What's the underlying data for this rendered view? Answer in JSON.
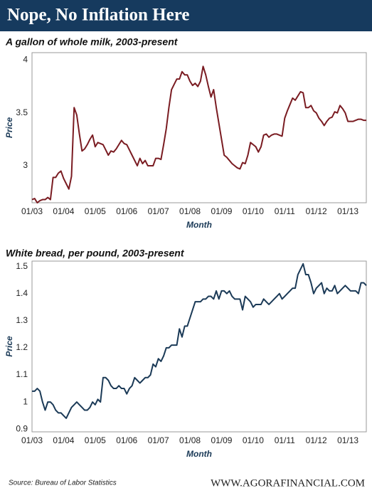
{
  "header": {
    "title": "Nope, No Inflation Here"
  },
  "footer": {
    "source": "Source: Bureau of Labor Statistics",
    "website": "WWW.AGORAFINANCIAL.COM"
  },
  "chart_data": [
    {
      "type": "line",
      "title": "A gallon of whole milk, 2003-present",
      "x_label": "Month",
      "y_label": "Price",
      "color": "#7a1c22",
      "categories": [
        "01/03",
        null,
        null,
        null,
        null,
        null,
        null,
        null,
        null,
        null,
        null,
        null,
        "01/04",
        null,
        null,
        null,
        null,
        null,
        null,
        null,
        null,
        null,
        null,
        null,
        "01/05",
        null,
        null,
        null,
        null,
        null,
        null,
        null,
        null,
        null,
        null,
        null,
        "01/06",
        null,
        null,
        null,
        null,
        null,
        null,
        null,
        null,
        null,
        null,
        null,
        "01/07",
        null,
        null,
        null,
        null,
        null,
        null,
        null,
        null,
        null,
        null,
        null,
        "01/08",
        null,
        null,
        null,
        null,
        null,
        null,
        null,
        null,
        null,
        null,
        null,
        "01/09",
        null,
        null,
        null,
        null,
        null,
        null,
        null,
        null,
        null,
        null,
        null,
        "01/10",
        null,
        null,
        null,
        null,
        null,
        null,
        null,
        null,
        null,
        null,
        null,
        "01/11",
        null,
        null,
        null,
        null,
        null,
        null,
        null,
        null,
        null,
        null,
        null,
        "01/12",
        null,
        null,
        null,
        null,
        null,
        null,
        null,
        null,
        null,
        null,
        null,
        "01/13",
        null,
        null,
        null,
        null,
        null,
        null,
        null
      ],
      "values": [
        2.68,
        2.69,
        2.65,
        2.67,
        2.68,
        2.68,
        2.7,
        2.68,
        2.89,
        2.89,
        2.93,
        2.95,
        2.88,
        2.83,
        2.78,
        2.9,
        3.55,
        3.48,
        3.3,
        3.14,
        3.16,
        3.2,
        3.25,
        3.29,
        3.18,
        3.22,
        3.21,
        3.2,
        3.15,
        3.1,
        3.14,
        3.13,
        3.16,
        3.2,
        3.24,
        3.21,
        3.2,
        3.15,
        3.1,
        3.05,
        3.0,
        3.07,
        3.02,
        3.05,
        3.0,
        3.0,
        3.0,
        3.07,
        3.07,
        3.06,
        3.2,
        3.35,
        3.55,
        3.72,
        3.77,
        3.82,
        3.82,
        3.89,
        3.86,
        3.86,
        3.8,
        3.76,
        3.78,
        3.75,
        3.8,
        3.94,
        3.86,
        3.75,
        3.65,
        3.72,
        3.55,
        3.4,
        3.25,
        3.1,
        3.08,
        3.05,
        3.02,
        3.0,
        2.98,
        2.97,
        3.03,
        3.02,
        3.1,
        3.22,
        3.2,
        3.18,
        3.13,
        3.18,
        3.29,
        3.3,
        3.27,
        3.29,
        3.3,
        3.3,
        3.29,
        3.28,
        3.45,
        3.52,
        3.58,
        3.64,
        3.62,
        3.66,
        3.7,
        3.69,
        3.55,
        3.55,
        3.57,
        3.52,
        3.5,
        3.45,
        3.42,
        3.38,
        3.42,
        3.45,
        3.46,
        3.51,
        3.5,
        3.57,
        3.54,
        3.5,
        3.42,
        3.42,
        3.42,
        3.43,
        3.44,
        3.44,
        3.43,
        3.43
      ],
      "ylim": [
        2.65,
        4.07
      ],
      "yticks": [
        3,
        3.5,
        4
      ],
      "grid": false
    },
    {
      "type": "line",
      "title": "White bread, per pound, 2003-present",
      "x_label": "Month",
      "y_label": "Price",
      "color": "#1b3a57",
      "categories": [
        "01/03",
        null,
        null,
        null,
        null,
        null,
        null,
        null,
        null,
        null,
        null,
        null,
        "01/04",
        null,
        null,
        null,
        null,
        null,
        null,
        null,
        null,
        null,
        null,
        null,
        "01/05",
        null,
        null,
        null,
        null,
        null,
        null,
        null,
        null,
        null,
        null,
        null,
        "01/06",
        null,
        null,
        null,
        null,
        null,
        null,
        null,
        null,
        null,
        null,
        null,
        "01/07",
        null,
        null,
        null,
        null,
        null,
        null,
        null,
        null,
        null,
        null,
        null,
        "01/08",
        null,
        null,
        null,
        null,
        null,
        null,
        null,
        null,
        null,
        null,
        null,
        "01/09",
        null,
        null,
        null,
        null,
        null,
        null,
        null,
        null,
        null,
        null,
        null,
        "01/10",
        null,
        null,
        null,
        null,
        null,
        null,
        null,
        null,
        null,
        null,
        null,
        "01/11",
        null,
        null,
        null,
        null,
        null,
        null,
        null,
        null,
        null,
        null,
        null,
        "01/12",
        null,
        null,
        null,
        null,
        null,
        null,
        null,
        null,
        null,
        null,
        null,
        "01/13",
        null,
        null,
        null,
        null,
        null,
        null,
        null
      ],
      "values": [
        1.04,
        1.04,
        1.05,
        1.04,
        1.0,
        0.97,
        1.0,
        1.0,
        0.99,
        0.97,
        0.96,
        0.96,
        0.95,
        0.94,
        0.96,
        0.98,
        0.99,
        1.0,
        0.99,
        0.98,
        0.97,
        0.97,
        0.98,
        1.0,
        0.99,
        1.01,
        1.0,
        1.09,
        1.09,
        1.08,
        1.06,
        1.05,
        1.05,
        1.06,
        1.05,
        1.05,
        1.03,
        1.05,
        1.06,
        1.09,
        1.08,
        1.07,
        1.08,
        1.09,
        1.09,
        1.1,
        1.14,
        1.13,
        1.16,
        1.15,
        1.17,
        1.2,
        1.2,
        1.21,
        1.21,
        1.21,
        1.27,
        1.24,
        1.28,
        1.28,
        1.31,
        1.34,
        1.37,
        1.37,
        1.37,
        1.38,
        1.38,
        1.39,
        1.39,
        1.38,
        1.41,
        1.38,
        1.41,
        1.41,
        1.4,
        1.41,
        1.39,
        1.38,
        1.38,
        1.38,
        1.34,
        1.39,
        1.38,
        1.37,
        1.35,
        1.36,
        1.36,
        1.36,
        1.38,
        1.37,
        1.36,
        1.37,
        1.38,
        1.39,
        1.4,
        1.38,
        1.39,
        1.4,
        1.41,
        1.42,
        1.42,
        1.47,
        1.49,
        1.51,
        1.47,
        1.47,
        1.44,
        1.4,
        1.42,
        1.43,
        1.44,
        1.4,
        1.42,
        1.41,
        1.41,
        1.43,
        1.4,
        1.41,
        1.42,
        1.43,
        1.42,
        1.41,
        1.41,
        1.41,
        1.4,
        1.44,
        1.44,
        1.43
      ],
      "ylim": [
        0.89,
        1.52
      ],
      "yticks": [
        0.9,
        1,
        1.1,
        1.2,
        1.3,
        1.4,
        1.5
      ],
      "grid": false
    }
  ]
}
